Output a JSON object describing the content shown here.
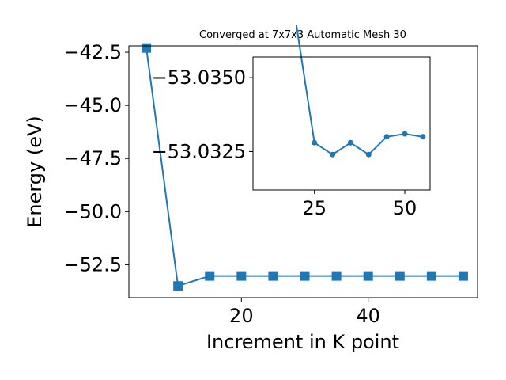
{
  "chart_data": [
    {
      "type": "line",
      "title": "Converged at 7x7x3 Automatic Mesh 30",
      "xlabel": "Increment in K point",
      "ylabel": "Energy (eV)",
      "xlim": [
        2.25,
        57.25
      ],
      "ylim": [
        -54.05,
        -42.2
      ],
      "x_ticks": [
        20,
        40
      ],
      "y_ticks": [
        -52.5,
        -50.0,
        -47.5,
        -45.0,
        -42.5
      ],
      "x_tick_labels": [
        "20",
        "40"
      ],
      "y_tick_labels": [
        "−52.5",
        "−50.0",
        "−47.5",
        "−45.0",
        "−42.5"
      ],
      "color": "#1f77b4",
      "marker": "square",
      "grid": false,
      "series": [
        {
          "x": [
            5,
            10,
            15,
            20,
            25,
            30,
            35,
            40,
            45,
            50,
            55
          ],
          "y": [
            -42.3,
            -53.5,
            -53.03,
            -53.03,
            -53.03,
            -53.03,
            -53.03,
            -53.03,
            -53.03,
            -53.03,
            -53.03
          ]
        }
      ]
    },
    {
      "type": "line",
      "title": "",
      "xlabel": "",
      "ylabel": "",
      "xlim": [
        8,
        57
      ],
      "ylim": [
        -53.0312,
        -53.0357
      ],
      "x_ticks": [
        25,
        50
      ],
      "y_ticks": [
        -53.035,
        -53.0325
      ],
      "x_tick_labels": [
        "25",
        "50"
      ],
      "y_tick_labels": [
        "−53.0350",
        "−53.0325"
      ],
      "color": "#1f77b4",
      "marker": "circle",
      "grid": false,
      "series": [
        {
          "x": [
            20,
            25,
            30,
            35,
            40,
            45,
            50,
            55
          ],
          "y": [
            -53.037,
            -53.0328,
            -53.0324,
            -53.0328,
            -53.0324,
            -53.033,
            -53.0331,
            -53.033
          ]
        }
      ]
    }
  ]
}
